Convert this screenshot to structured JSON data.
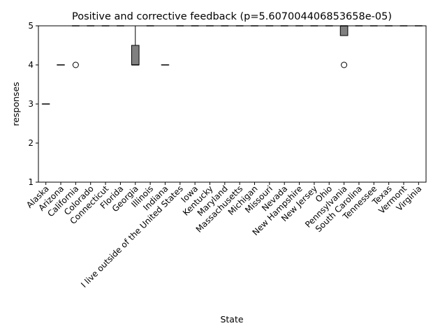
{
  "chart_data": {
    "type": "box",
    "title": "Positive and corrective feedback (p=5.607004406853658e-05)",
    "xlabel": "State",
    "ylabel": "responses",
    "ylim": [
      1,
      5
    ],
    "yticks": [
      1,
      2,
      3,
      4,
      5
    ],
    "grid": false,
    "colors": {
      "box_fill": "#808080",
      "stroke": "#000000",
      "background": "#ffffff"
    },
    "categories": [
      "Alaska",
      "Arizona",
      "California",
      "Colorado",
      "Connecticut",
      "Florida",
      "Georgia",
      "Illinois",
      "Indiana",
      "I live outside of the United States",
      "Iowa",
      "Kentucky",
      "Maryland",
      "Massachusetts",
      "Michigan",
      "Missouri",
      "Nevada",
      "New Hampshire",
      "New Jersey",
      "Ohio",
      "Pennsylvania",
      "South Carolina",
      "Tennessee",
      "Texas",
      "Vermont",
      "Virginia"
    ],
    "boxes": [
      {
        "q1": 3,
        "median": 3,
        "q3": 3,
        "whislo": 3,
        "whishi": 3,
        "fliers": []
      },
      {
        "q1": 4,
        "median": 4,
        "q3": 4,
        "whislo": 4,
        "whishi": 4,
        "fliers": []
      },
      {
        "q1": 5,
        "median": 5,
        "q3": 5,
        "whislo": 5,
        "whishi": 5,
        "fliers": [
          4
        ]
      },
      {
        "q1": 5,
        "median": 5,
        "q3": 5,
        "whislo": 5,
        "whishi": 5,
        "fliers": []
      },
      {
        "q1": 5,
        "median": 5,
        "q3": 5,
        "whislo": 5,
        "whishi": 5,
        "fliers": []
      },
      {
        "q1": 5,
        "median": 5,
        "q3": 5,
        "whislo": 5,
        "whishi": 5,
        "fliers": []
      },
      {
        "q1": 4,
        "median": 4,
        "q3": 4.5,
        "whislo": 4,
        "whishi": 5,
        "fliers": []
      },
      {
        "q1": 5,
        "median": 5,
        "q3": 5,
        "whislo": 5,
        "whishi": 5,
        "fliers": []
      },
      {
        "q1": 4,
        "median": 4,
        "q3": 4,
        "whislo": 4,
        "whishi": 4,
        "fliers": []
      },
      {
        "q1": 5,
        "median": 5,
        "q3": 5,
        "whislo": 5,
        "whishi": 5,
        "fliers": []
      },
      {
        "q1": 5,
        "median": 5,
        "q3": 5,
        "whislo": 5,
        "whishi": 5,
        "fliers": []
      },
      {
        "q1": 5,
        "median": 5,
        "q3": 5,
        "whislo": 5,
        "whishi": 5,
        "fliers": []
      },
      {
        "q1": 5,
        "median": 5,
        "q3": 5,
        "whislo": 5,
        "whishi": 5,
        "fliers": []
      },
      {
        "q1": 5,
        "median": 5,
        "q3": 5,
        "whislo": 5,
        "whishi": 5,
        "fliers": []
      },
      {
        "q1": 5,
        "median": 5,
        "q3": 5,
        "whislo": 5,
        "whishi": 5,
        "fliers": []
      },
      {
        "q1": 5,
        "median": 5,
        "q3": 5,
        "whislo": 5,
        "whishi": 5,
        "fliers": []
      },
      {
        "q1": 5,
        "median": 5,
        "q3": 5,
        "whislo": 5,
        "whishi": 5,
        "fliers": []
      },
      {
        "q1": 5,
        "median": 5,
        "q3": 5,
        "whislo": 5,
        "whishi": 5,
        "fliers": []
      },
      {
        "q1": 5,
        "median": 5,
        "q3": 5,
        "whislo": 5,
        "whishi": 5,
        "fliers": []
      },
      {
        "q1": 5,
        "median": 5,
        "q3": 5,
        "whislo": 5,
        "whishi": 5,
        "fliers": []
      },
      {
        "q1": 4.75,
        "median": 5,
        "q3": 5,
        "whislo": 4.75,
        "whishi": 5,
        "fliers": [
          4
        ]
      },
      {
        "q1": 5,
        "median": 5,
        "q3": 5,
        "whislo": 5,
        "whishi": 5,
        "fliers": []
      },
      {
        "q1": 5,
        "median": 5,
        "q3": 5,
        "whislo": 5,
        "whishi": 5,
        "fliers": []
      },
      {
        "q1": 5,
        "median": 5,
        "q3": 5,
        "whislo": 5,
        "whishi": 5,
        "fliers": []
      },
      {
        "q1": 5,
        "median": 5,
        "q3": 5,
        "whislo": 5,
        "whishi": 5,
        "fliers": []
      },
      {
        "q1": 5,
        "median": 5,
        "q3": 5,
        "whislo": 5,
        "whishi": 5,
        "fliers": []
      }
    ]
  }
}
